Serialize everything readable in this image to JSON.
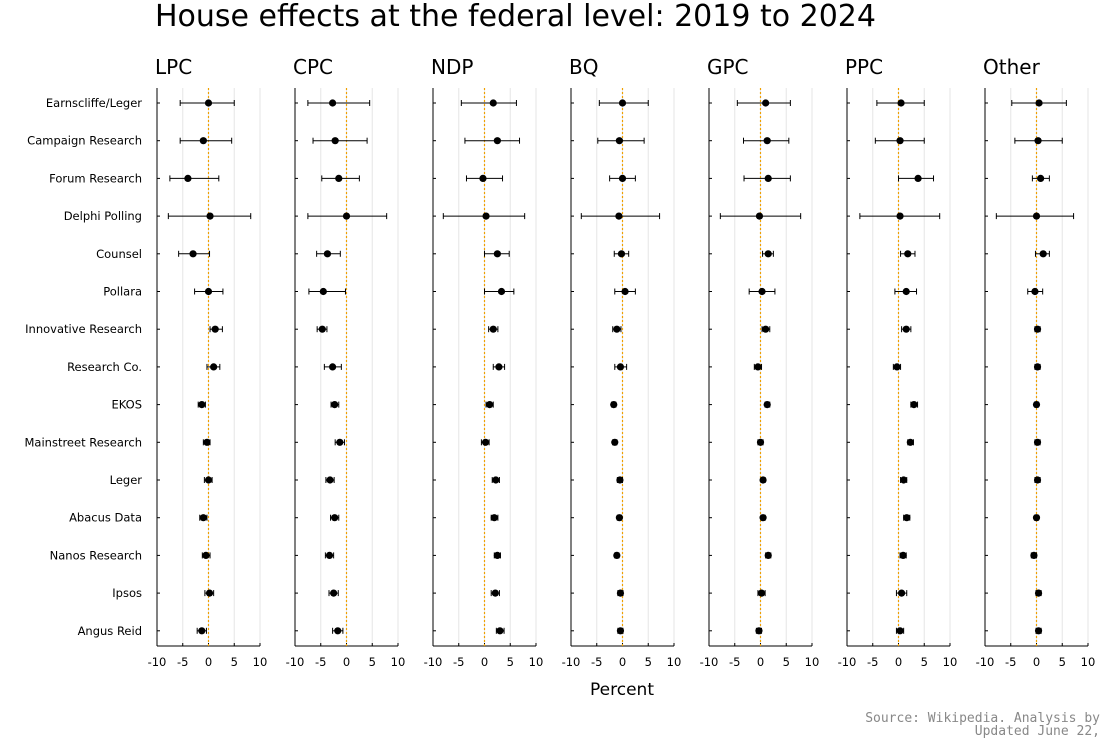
{
  "chart_data": {
    "type": "scatter",
    "style": "dot-with-error-bars, faceted panels",
    "title": "House effects at the federal level: 2019 to 2024",
    "xlabel": "Percent",
    "xlim": [
      -10,
      10
    ],
    "xticks": [
      -10,
      -5,
      0,
      5,
      10
    ],
    "xtick_labels": [
      "-10",
      "-5",
      "0",
      "5",
      "10"
    ],
    "reference_line": {
      "x": 0,
      "color": "#f0a000",
      "style": "dotted"
    },
    "grid": true,
    "colors": {
      "points": "#000000",
      "reference": "#f0a000",
      "grid": "#e6e6e6"
    },
    "pollsters": [
      "Earnscliffe/Leger",
      "Campaign Research",
      "Forum Research",
      "Delphi Polling",
      "Counsel",
      "Pollara",
      "Innovative Research",
      "Research Co.",
      "EKOS",
      "Mainstreet Research",
      "Leger",
      "Abacus Data",
      "Nanos Research",
      "Ipsos",
      "Angus Reid"
    ],
    "panels": [
      {
        "party": "LPC",
        "estimate": [
          0,
          -1,
          -4,
          0.3,
          -3,
          0,
          1.3,
          1,
          -1.3,
          -0.3,
          0,
          -1,
          -0.5,
          0.2,
          -1.3
        ],
        "lower": [
          -5.5,
          -5.5,
          -7.5,
          -7.8,
          -5.8,
          -2.7,
          0.3,
          -0.3,
          -2,
          -1,
          -0.8,
          -1.7,
          -1.2,
          -0.7,
          -2.2
        ],
        "upper": [
          5,
          4.5,
          2,
          8.2,
          0.2,
          2.8,
          2.7,
          2.2,
          -0.6,
          0.3,
          0.7,
          -0.3,
          0.3,
          1,
          -0.4
        ]
      },
      {
        "party": "CPC",
        "estimate": [
          -2.7,
          -2.2,
          -1.5,
          0,
          -3.7,
          -4.5,
          -4.7,
          -2.7,
          -2.3,
          -1.3,
          -3.2,
          -2.3,
          -3.3,
          -2.5,
          -1.7
        ],
        "lower": [
          -7.5,
          -6.5,
          -4.8,
          -7.5,
          -5.8,
          -7.3,
          -5.7,
          -4.3,
          -3,
          -2.2,
          -4,
          -3.1,
          -4.1,
          -3.4,
          -2.7
        ],
        "upper": [
          4.5,
          4,
          2.5,
          7.8,
          -1.2,
          -0.2,
          -3.8,
          -1,
          -1.5,
          -0.4,
          -2.4,
          -1.5,
          -2.5,
          -1.6,
          -0.7
        ]
      },
      {
        "party": "NDP",
        "estimate": [
          1.7,
          2.5,
          -0.3,
          0.3,
          2.5,
          3.3,
          1.7,
          2.8,
          1,
          0.2,
          2.2,
          1.9,
          2.5,
          2.1,
          3
        ],
        "lower": [
          -4.5,
          -3.8,
          -3.5,
          -8,
          0,
          0,
          0.8,
          1.7,
          0.3,
          -0.6,
          1.5,
          1.3,
          1.9,
          1.3,
          2.3
        ],
        "upper": [
          6.2,
          6.8,
          3.5,
          7.8,
          4.8,
          5.7,
          2.6,
          3.9,
          1.7,
          0.9,
          2.9,
          2.6,
          3.1,
          2.9,
          3.8
        ]
      },
      {
        "party": "BQ",
        "estimate": [
          0,
          -0.6,
          0,
          -0.7,
          -0.2,
          0.5,
          -1.1,
          -0.4,
          -1.7,
          -1.5,
          -0.5,
          -0.6,
          -1.1,
          -0.4,
          -0.4
        ],
        "lower": [
          -4.5,
          -4.8,
          -2.5,
          -8,
          -1.6,
          -1.5,
          -1.9,
          -1.5,
          -2.1,
          -1.9,
          -1,
          -1,
          -1.5,
          -0.9,
          -0.9
        ],
        "upper": [
          5,
          4.2,
          2.5,
          7.2,
          1.2,
          2.5,
          -0.3,
          0.8,
          -1.3,
          -1.1,
          0,
          -0.2,
          -0.7,
          0.1,
          0.1
        ]
      },
      {
        "party": "GPC",
        "estimate": [
          1,
          1.3,
          1.5,
          -0.2,
          1.5,
          0.3,
          1,
          -0.5,
          1.3,
          0,
          0.5,
          0.5,
          1.5,
          0.2,
          -0.3
        ],
        "lower": [
          -4.5,
          -3.3,
          -3.2,
          -7.8,
          0.4,
          -2.2,
          0.3,
          -1.2,
          0.9,
          -0.5,
          0.1,
          0.1,
          1,
          -0.5,
          -0.8
        ],
        "upper": [
          5.8,
          5.5,
          5.8,
          7.8,
          2.5,
          2.8,
          1.8,
          0.2,
          1.8,
          0.5,
          0.9,
          0.9,
          2,
          0.9,
          0.2
        ]
      },
      {
        "party": "PPC",
        "estimate": [
          0.5,
          0.3,
          3.8,
          0.3,
          1.8,
          1.5,
          1.5,
          -0.3,
          3,
          2.3,
          1,
          1.6,
          0.9,
          0.6,
          0.3
        ],
        "lower": [
          -4.2,
          -4.5,
          0,
          -7.5,
          0.4,
          -0.7,
          0.6,
          -1,
          2.4,
          1.8,
          0.4,
          1,
          0.3,
          -0.4,
          -0.4
        ],
        "upper": [
          5,
          5,
          6.8,
          8,
          3.2,
          3.5,
          2.4,
          0.4,
          3.7,
          2.9,
          1.6,
          2.2,
          1.5,
          1.6,
          1
        ]
      },
      {
        "party": "Other",
        "estimate": [
          0.5,
          0.3,
          0.8,
          0,
          1.3,
          -0.3,
          0.2,
          0.2,
          0,
          0.2,
          0.2,
          0,
          -0.5,
          0.4,
          0.4
        ],
        "lower": [
          -4.8,
          -4.2,
          -0.8,
          -7.8,
          -0.2,
          -1.7,
          -0.3,
          -0.3,
          -0.4,
          -0.3,
          -0.3,
          -0.4,
          -1,
          -0.1,
          -0.1
        ],
        "upper": [
          5.8,
          5,
          2.5,
          7.2,
          2.5,
          1.2,
          0.7,
          0.7,
          0.4,
          0.7,
          0.7,
          0.4,
          0,
          0.9,
          0.9
        ]
      }
    ]
  },
  "source_line1": "Source: Wikipedia. Analysis by",
  "source_line2": "Updated June 22,"
}
